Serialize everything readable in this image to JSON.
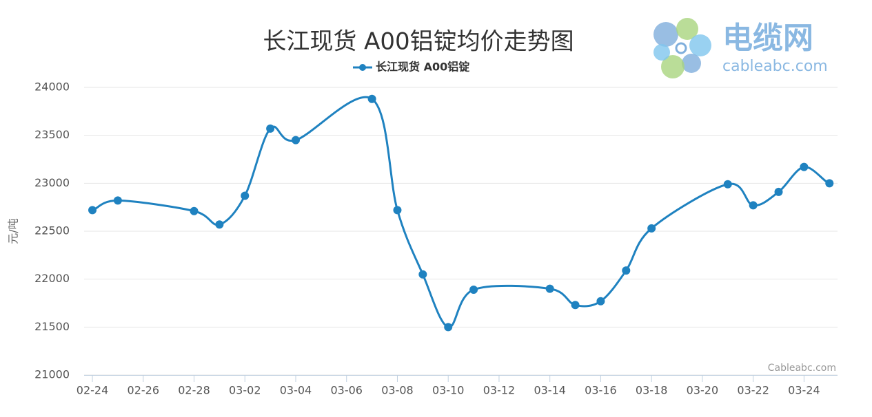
{
  "chart_data": {
    "type": "line",
    "title": "长江现货 A00铝锭均价走势图",
    "y_label": "元/吨",
    "credit": "Cableabc.com",
    "logo": {
      "name": "电缆网",
      "domain": "cableabc.com"
    },
    "categories": [
      "02-24",
      null,
      "02-26",
      null,
      "02-28",
      null,
      "03-02",
      null,
      "03-04",
      null,
      "03-06",
      null,
      "03-08",
      null,
      "03-10",
      null,
      "03-12",
      null,
      "03-14",
      null,
      "03-16",
      null,
      "03-18",
      null,
      "03-20",
      null,
      "03-22",
      null,
      "03-24",
      null
    ],
    "series": [
      {
        "name": "长江现货 A00铝锭",
        "color": "#1f82c0",
        "values": [
          22720,
          22820,
          null,
          null,
          22710,
          22570,
          22870,
          23570,
          23450,
          null,
          null,
          23880,
          22720,
          22050,
          21500,
          21890,
          null,
          null,
          21900,
          21730,
          21770,
          22090,
          22530,
          null,
          null,
          22990,
          22770,
          22910,
          23170,
          23000
        ]
      }
    ],
    "connect_nulls": true,
    "smooth": true,
    "ylim": [
      21000,
      24000
    ],
    "yticks": [
      21000,
      21500,
      22000,
      22500,
      23000,
      23500,
      24000
    ],
    "grid": true,
    "legend": "top"
  }
}
